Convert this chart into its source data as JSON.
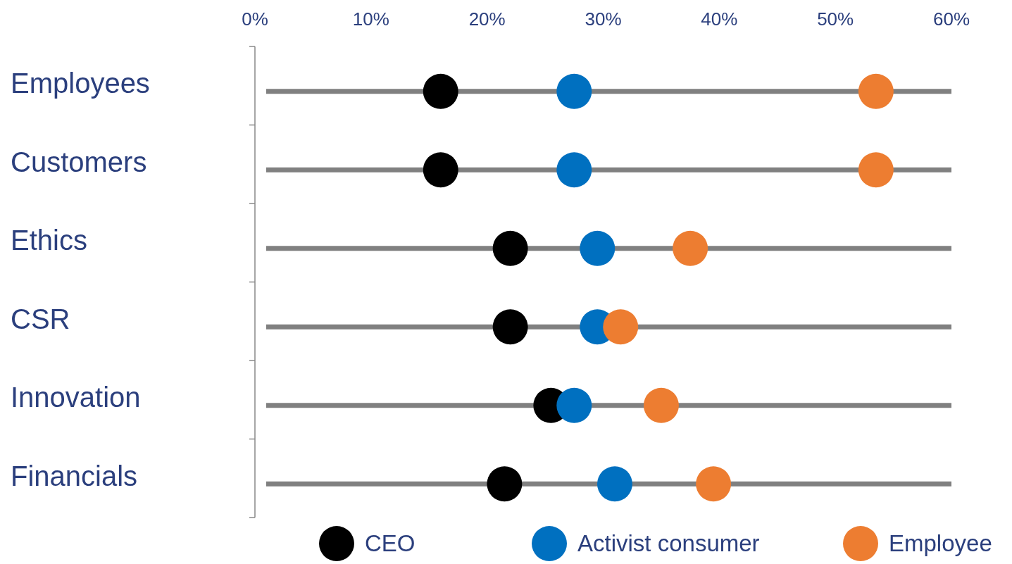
{
  "chart_data": {
    "type": "scatter",
    "orientation": "horizontal",
    "categories": [
      "Employees",
      "Customers",
      "Ethics",
      "CSR",
      "Innovation",
      "Financials"
    ],
    "series": [
      {
        "name": "CEO",
        "color": "#000000",
        "values": [
          16,
          16,
          22,
          22,
          25.5,
          21.5
        ]
      },
      {
        "name": "Activist consumer",
        "color": "#0070c0",
        "values": [
          27.5,
          27.5,
          29.5,
          29.5,
          27.5,
          31
        ]
      },
      {
        "name": "Employee",
        "color": "#ed7d31",
        "values": [
          53.5,
          53.5,
          37.5,
          31.5,
          35,
          39.5
        ]
      }
    ],
    "xlim": [
      0,
      60
    ],
    "xticks": [
      {
        "value": 0,
        "label": "0%"
      },
      {
        "value": 10,
        "label": "10%"
      },
      {
        "value": 20,
        "label": "20%"
      },
      {
        "value": 30,
        "label": "30%"
      },
      {
        "value": 40,
        "label": "40%"
      },
      {
        "value": 50,
        "label": "50%"
      },
      {
        "value": 60,
        "label": "60%"
      }
    ],
    "grid": "y",
    "legend": "bottom",
    "marker": "circle"
  }
}
